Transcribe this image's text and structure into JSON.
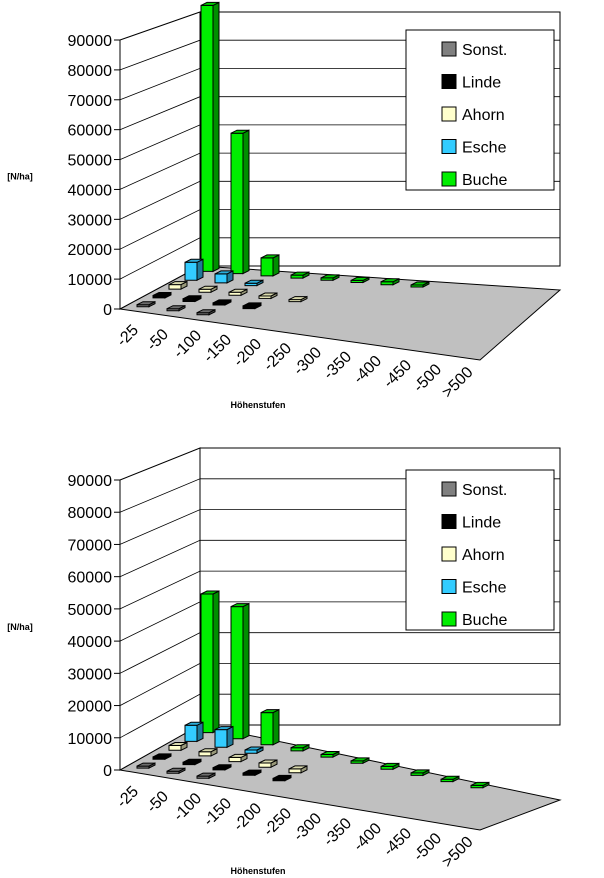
{
  "series_colors": {
    "sonst": "#808080",
    "linde": "#000000",
    "ahorn": "#FFFFCC",
    "esche": "#33CCFF",
    "buche": "#00EE00"
  },
  "chart_data": [
    {
      "type": "bar",
      "title": "",
      "xlabel": "Höhenstufen",
      "ylabel": "[N/ha]",
      "ylim": [
        0,
        90000
      ],
      "yticks": [
        "0",
        "10000",
        "20000",
        "30000",
        "40000",
        "50000",
        "60000",
        "70000",
        "80000",
        "90000"
      ],
      "categories": [
        "-25",
        "-50",
        "-100",
        "-150",
        "-200",
        "-250",
        "-300",
        "-350",
        "-400",
        "-450",
        "-500",
        ">500"
      ],
      "legend": {
        "position": "top-right",
        "entries": [
          "Sonst.",
          "Linde",
          "Ahorn",
          "Esche",
          "Buche"
        ]
      },
      "grid": true,
      "series": [
        {
          "name": "Sonst.",
          "key": "sonst",
          "values": [
            400,
            600,
            700,
            0,
            0,
            0,
            0,
            0,
            0,
            0,
            0,
            0
          ]
        },
        {
          "name": "Linde",
          "key": "linde",
          "values": [
            800,
            900,
            700,
            900,
            0,
            0,
            0,
            0,
            0,
            0,
            0,
            0
          ]
        },
        {
          "name": "Ahorn",
          "key": "ahorn",
          "values": [
            1500,
            1000,
            1000,
            800,
            500,
            0,
            0,
            0,
            0,
            0,
            0,
            0
          ]
        },
        {
          "name": "Esche",
          "key": "esche",
          "values": [
            6000,
            3000,
            800,
            0,
            0,
            0,
            0,
            0,
            0,
            0,
            0,
            0
          ]
        },
        {
          "name": "Buche",
          "key": "buche",
          "values": [
            89000,
            47000,
            6000,
            1000,
            800,
            700,
            1000,
            500,
            0,
            0,
            0,
            0
          ]
        }
      ]
    },
    {
      "type": "bar",
      "title": "",
      "xlabel": "Höhenstufen",
      "ylabel": "[N/ha]",
      "ylim": [
        0,
        90000
      ],
      "yticks": [
        "0",
        "10000",
        "20000",
        "30000",
        "40000",
        "50000",
        "60000",
        "70000",
        "80000",
        "90000"
      ],
      "categories": [
        "-25",
        "-50",
        "-100",
        "-150",
        "-200",
        "-250",
        "-300",
        "-350",
        "-400",
        "-450",
        "-500",
        ">500"
      ],
      "legend": {
        "position": "top-right",
        "entries": [
          "Sonst.",
          "Linde",
          "Ahorn",
          "Esche",
          "Buche"
        ]
      },
      "grid": true,
      "series": [
        {
          "name": "Sonst.",
          "key": "sonst",
          "values": [
            400,
            500,
            700,
            0,
            0,
            0,
            0,
            0,
            0,
            0,
            0,
            0
          ]
        },
        {
          "name": "Linde",
          "key": "linde",
          "values": [
            700,
            700,
            700,
            700,
            700,
            0,
            0,
            0,
            0,
            0,
            0,
            0
          ]
        },
        {
          "name": "Ahorn",
          "key": "ahorn",
          "values": [
            1500,
            1300,
            1300,
            1300,
            1200,
            0,
            0,
            0,
            0,
            0,
            0,
            0
          ]
        },
        {
          "name": "Esche",
          "key": "esche",
          "values": [
            5000,
            5500,
            1000,
            0,
            0,
            0,
            0,
            0,
            0,
            0,
            0,
            0
          ]
        },
        {
          "name": "Buche",
          "key": "buche",
          "values": [
            43000,
            41000,
            10000,
            1000,
            800,
            700,
            900,
            800,
            700,
            700,
            0,
            0
          ]
        }
      ]
    }
  ]
}
